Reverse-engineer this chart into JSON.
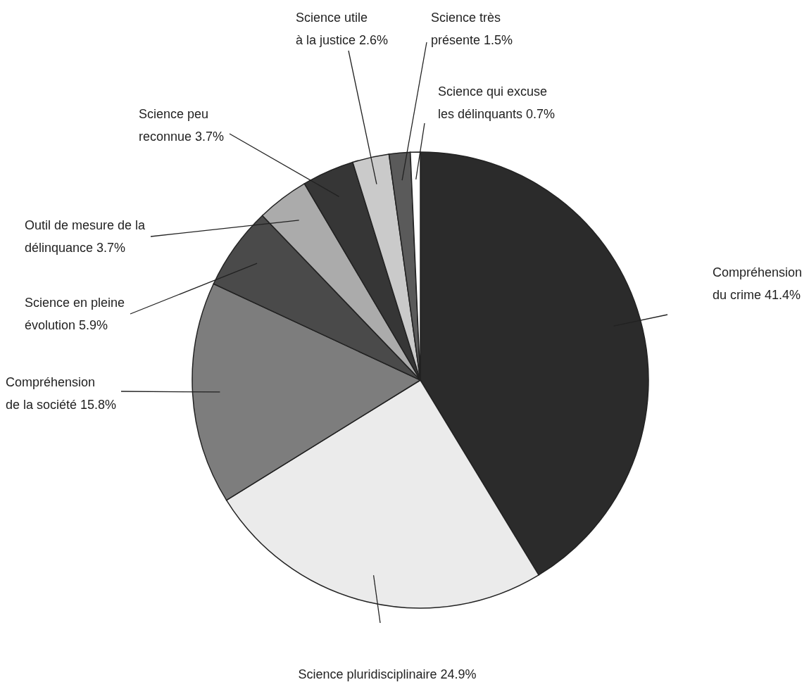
{
  "chart_data": {
    "type": "pie",
    "categories": [
      "Compréhension du crime",
      "Science pluridisciplinaire",
      "Compréhension de la société",
      "Science en pleine évolution",
      "Outil de mesure de la délinquance",
      "Science peu reconnue",
      "Science utile à la justice",
      "Science très présente",
      "Science qui excuse les délinquants"
    ],
    "values": [
      41.4,
      24.9,
      15.8,
      5.9,
      3.7,
      3.7,
      2.6,
      1.5,
      0.7
    ],
    "value_labels": [
      "41.4%",
      "24.9%",
      "15.8%",
      "5.9%",
      "3.7%",
      "3.7%",
      "2.6%",
      "1.5%",
      "0.7%"
    ],
    "colors": [
      "#2b2b2b",
      "#ebebeb",
      "#7d7d7d",
      "#4a4a4a",
      "#ababab",
      "#363636",
      "#cacaca",
      "#5a5a5a",
      "#ffffff"
    ]
  }
}
